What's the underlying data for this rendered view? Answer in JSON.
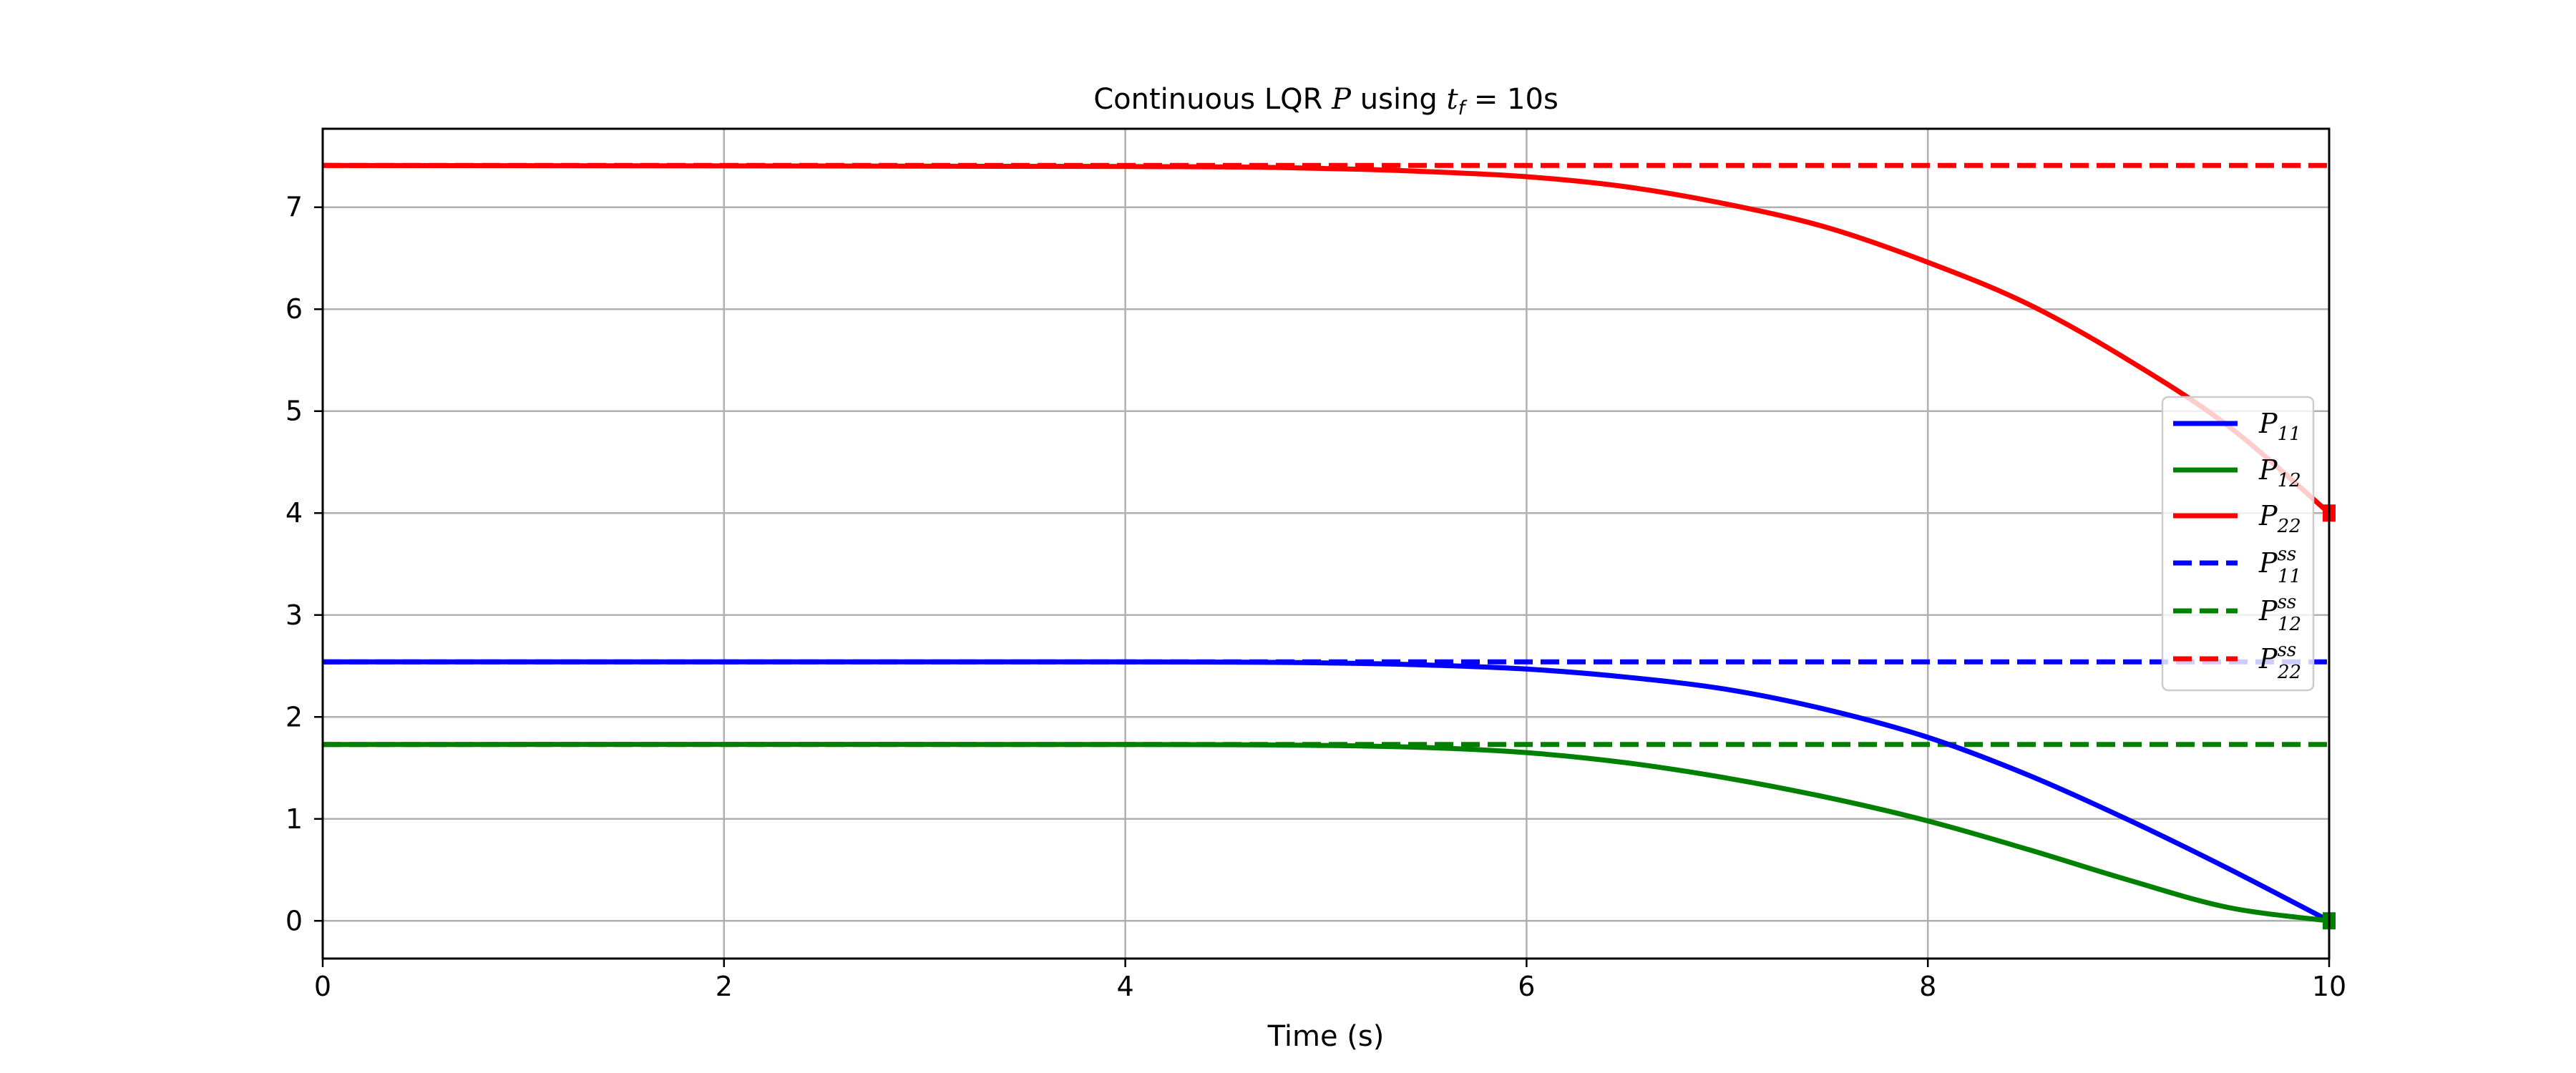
{
  "chart_data": {
    "type": "line",
    "title": {
      "prefix": "Continuous LQR ",
      "var": "P",
      "mid": " using ",
      "sym": "t",
      "sym_sub": "f",
      "suffix": " = 10s"
    },
    "xlabel": "Time (s)",
    "ylabel": "",
    "xlim": [
      0,
      10
    ],
    "ylim": [
      -0.37,
      7.77
    ],
    "xticks": [
      0,
      2,
      4,
      6,
      8,
      10
    ],
    "yticks": [
      0,
      1,
      2,
      3,
      4,
      5,
      6,
      7
    ],
    "grid": true,
    "legend_position": "center-right",
    "series": [
      {
        "id": "P11",
        "label": "P",
        "sub": "11",
        "sup": "",
        "color": "#0000ff",
        "style": "solid",
        "x": [
          0,
          4.0,
          5.0,
          5.5,
          6.0,
          6.5,
          7.0,
          7.5,
          8.0,
          8.5,
          9.0,
          9.5,
          10.0
        ],
        "y": [
          2.54,
          2.54,
          2.53,
          2.51,
          2.47,
          2.39,
          2.27,
          2.07,
          1.8,
          1.43,
          0.99,
          0.51,
          0.0
        ]
      },
      {
        "id": "P12",
        "label": "P",
        "sub": "12",
        "sup": "",
        "color": "#008000",
        "style": "solid",
        "x": [
          0,
          4.0,
          5.0,
          5.5,
          6.0,
          6.5,
          7.0,
          7.5,
          8.0,
          8.5,
          9.0,
          9.5,
          10.0
        ],
        "y": [
          1.73,
          1.73,
          1.72,
          1.7,
          1.65,
          1.55,
          1.4,
          1.21,
          0.98,
          0.7,
          0.4,
          0.13,
          0.0
        ]
      },
      {
        "id": "P22",
        "label": "P",
        "sub": "22",
        "sup": "",
        "color": "#ff0000",
        "style": "solid",
        "x": [
          0,
          4.0,
          5.0,
          5.5,
          6.0,
          6.5,
          7.0,
          7.5,
          8.0,
          8.5,
          9.0,
          9.5,
          10.0
        ],
        "y": [
          7.41,
          7.4,
          7.38,
          7.35,
          7.3,
          7.2,
          7.03,
          6.8,
          6.46,
          6.05,
          5.5,
          4.85,
          4.0
        ]
      },
      {
        "id": "P11ss",
        "label": "P",
        "sub": "11",
        "sup": "ss",
        "color": "#0000ff",
        "style": "dashed",
        "x": [
          0,
          10
        ],
        "y": [
          2.54,
          2.54
        ]
      },
      {
        "id": "P12ss",
        "label": "P",
        "sub": "12",
        "sup": "ss",
        "color": "#008000",
        "style": "dashed",
        "x": [
          0,
          10
        ],
        "y": [
          1.73,
          1.73
        ]
      },
      {
        "id": "P22ss",
        "label": "P",
        "sub": "22",
        "sup": "ss",
        "color": "#ff0000",
        "style": "dashed",
        "x": [
          0,
          10
        ],
        "y": [
          7.41,
          7.41
        ]
      }
    ],
    "endpoint_markers": [
      {
        "x": 10,
        "y": 4.0,
        "color": "#ff0000"
      },
      {
        "x": 10,
        "y": 0.0,
        "color": "#008000"
      }
    ]
  }
}
